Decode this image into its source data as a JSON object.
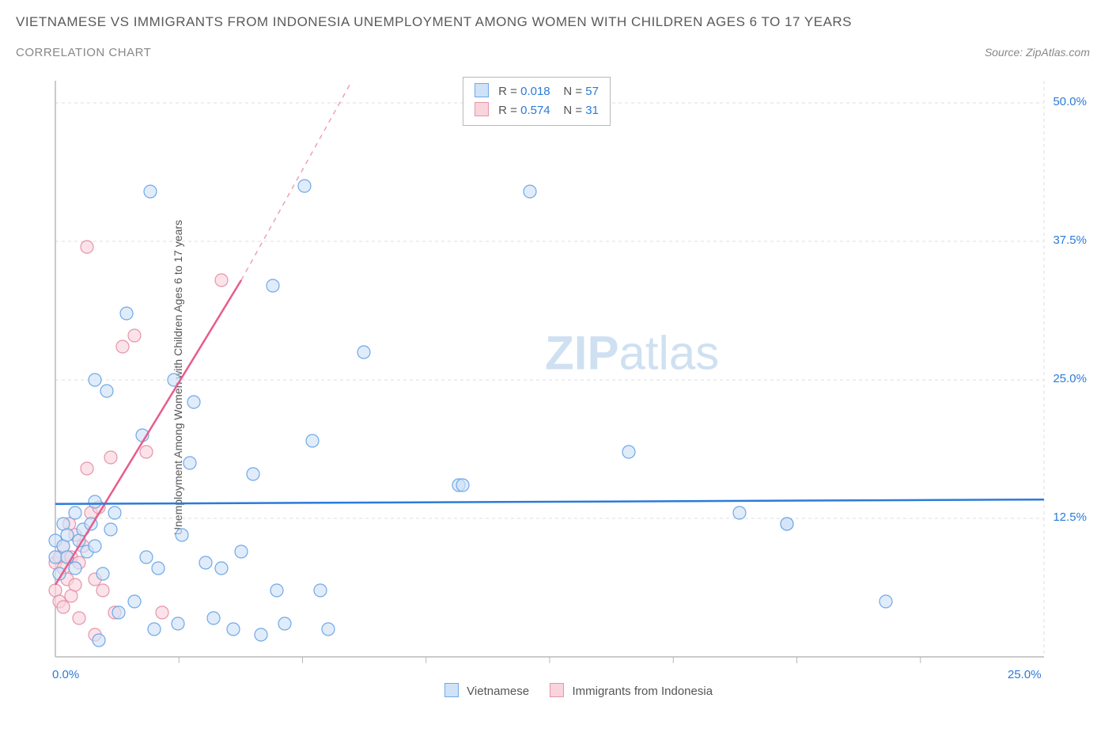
{
  "title": "VIETNAMESE VS IMMIGRANTS FROM INDONESIA UNEMPLOYMENT AMONG WOMEN WITH CHILDREN AGES 6 TO 17 YEARS",
  "subtitle": "CORRELATION CHART",
  "source": "Source: ZipAtlas.com",
  "watermark": {
    "bold": "ZIP",
    "light": "atlas"
  },
  "chart": {
    "type": "scatter",
    "y_label": "Unemployment Among Women with Children Ages 6 to 17 years",
    "xlim": [
      0,
      25
    ],
    "ylim": [
      0,
      52
    ],
    "x_ticks": [
      0,
      25
    ],
    "x_tick_labels": [
      "0.0%",
      "25.0%"
    ],
    "x_minor_ticks": [
      3.125,
      6.25,
      9.375,
      12.5,
      15.625,
      18.75,
      21.875
    ],
    "y_ticks": [
      12.5,
      25.0,
      37.5,
      50.0
    ],
    "y_tick_labels": [
      "12.5%",
      "25.0%",
      "37.5%",
      "50.0%"
    ],
    "background_color": "#ffffff",
    "grid_color": "#dcdcdc",
    "axis_color": "#b8b8b8",
    "marker_radius": 8,
    "marker_stroke_width": 1.2,
    "series": [
      {
        "name": "Vietnamese",
        "fill": "#cfe2f7",
        "stroke": "#6fa8e8",
        "fill_opacity": 0.65,
        "R": "0.018",
        "N": "57",
        "trend": {
          "x1": 0,
          "y1": 13.8,
          "x2": 25,
          "y2": 14.2,
          "color": "#2b7bd9",
          "width": 2.5
        },
        "points": [
          [
            0.0,
            9.0
          ],
          [
            0.0,
            10.5
          ],
          [
            0.1,
            7.5
          ],
          [
            0.2,
            12.0
          ],
          [
            0.2,
            10.0
          ],
          [
            0.3,
            9.0
          ],
          [
            0.3,
            11.0
          ],
          [
            0.5,
            8.0
          ],
          [
            0.5,
            13.0
          ],
          [
            0.6,
            10.5
          ],
          [
            0.7,
            11.5
          ],
          [
            0.8,
            9.5
          ],
          [
            0.9,
            12.0
          ],
          [
            1.0,
            10.0
          ],
          [
            1.0,
            14.0
          ],
          [
            1.0,
            25.0
          ],
          [
            1.1,
            1.5
          ],
          [
            1.2,
            7.5
          ],
          [
            1.3,
            24.0
          ],
          [
            1.4,
            11.5
          ],
          [
            1.5,
            13.0
          ],
          [
            1.6,
            4.0
          ],
          [
            1.8,
            31.0
          ],
          [
            2.0,
            5.0
          ],
          [
            2.2,
            20.0
          ],
          [
            2.3,
            9.0
          ],
          [
            2.4,
            42.0
          ],
          [
            2.5,
            2.5
          ],
          [
            2.6,
            8.0
          ],
          [
            3.0,
            25.0
          ],
          [
            3.1,
            3.0
          ],
          [
            3.2,
            11.0
          ],
          [
            3.4,
            17.5
          ],
          [
            3.5,
            23.0
          ],
          [
            3.8,
            8.5
          ],
          [
            4.0,
            3.5
          ],
          [
            4.2,
            8.0
          ],
          [
            4.5,
            2.5
          ],
          [
            4.7,
            9.5
          ],
          [
            5.0,
            16.5
          ],
          [
            5.2,
            2.0
          ],
          [
            5.5,
            33.5
          ],
          [
            5.6,
            6.0
          ],
          [
            5.8,
            3.0
          ],
          [
            6.3,
            42.5
          ],
          [
            6.5,
            19.5
          ],
          [
            6.7,
            6.0
          ],
          [
            6.9,
            2.5
          ],
          [
            7.8,
            27.5
          ],
          [
            10.2,
            15.5
          ],
          [
            10.3,
            15.5
          ],
          [
            12.0,
            42.0
          ],
          [
            14.5,
            18.5
          ],
          [
            17.3,
            13.0
          ],
          [
            18.5,
            12.0
          ],
          [
            21.0,
            5.0
          ],
          [
            18.5,
            12.0
          ]
        ]
      },
      {
        "name": "Immigrants from Indonesia",
        "fill": "#f9d4dd",
        "stroke": "#e694ab",
        "fill_opacity": 0.65,
        "R": "0.574",
        "N": "31",
        "trend": {
          "x1": 0,
          "y1": 6.5,
          "x2": 4.7,
          "y2": 34.0,
          "color": "#e75d8b",
          "width": 2.5,
          "dash_extend": {
            "x2": 7.5,
            "y2": 52
          }
        },
        "points": [
          [
            0.0,
            8.5
          ],
          [
            0.0,
            6.0
          ],
          [
            0.1,
            9.0
          ],
          [
            0.1,
            5.0
          ],
          [
            0.2,
            8.0
          ],
          [
            0.2,
            10.0
          ],
          [
            0.2,
            4.5
          ],
          [
            0.3,
            9.0
          ],
          [
            0.3,
            7.0
          ],
          [
            0.35,
            12.0
          ],
          [
            0.4,
            9.0
          ],
          [
            0.4,
            5.5
          ],
          [
            0.5,
            11.0
          ],
          [
            0.5,
            6.5
          ],
          [
            0.6,
            8.5
          ],
          [
            0.6,
            3.5
          ],
          [
            0.7,
            10.0
          ],
          [
            0.8,
            17.0
          ],
          [
            0.8,
            37.0
          ],
          [
            0.9,
            13.0
          ],
          [
            1.0,
            7.0
          ],
          [
            1.0,
            2.0
          ],
          [
            1.1,
            13.5
          ],
          [
            1.2,
            6.0
          ],
          [
            1.4,
            18.0
          ],
          [
            1.5,
            4.0
          ],
          [
            1.7,
            28.0
          ],
          [
            2.0,
            29.0
          ],
          [
            2.3,
            18.5
          ],
          [
            2.7,
            4.0
          ],
          [
            4.2,
            34.0
          ]
        ]
      }
    ],
    "legend_labels": [
      "Vietnamese",
      "Immigrants from Indonesia"
    ]
  }
}
